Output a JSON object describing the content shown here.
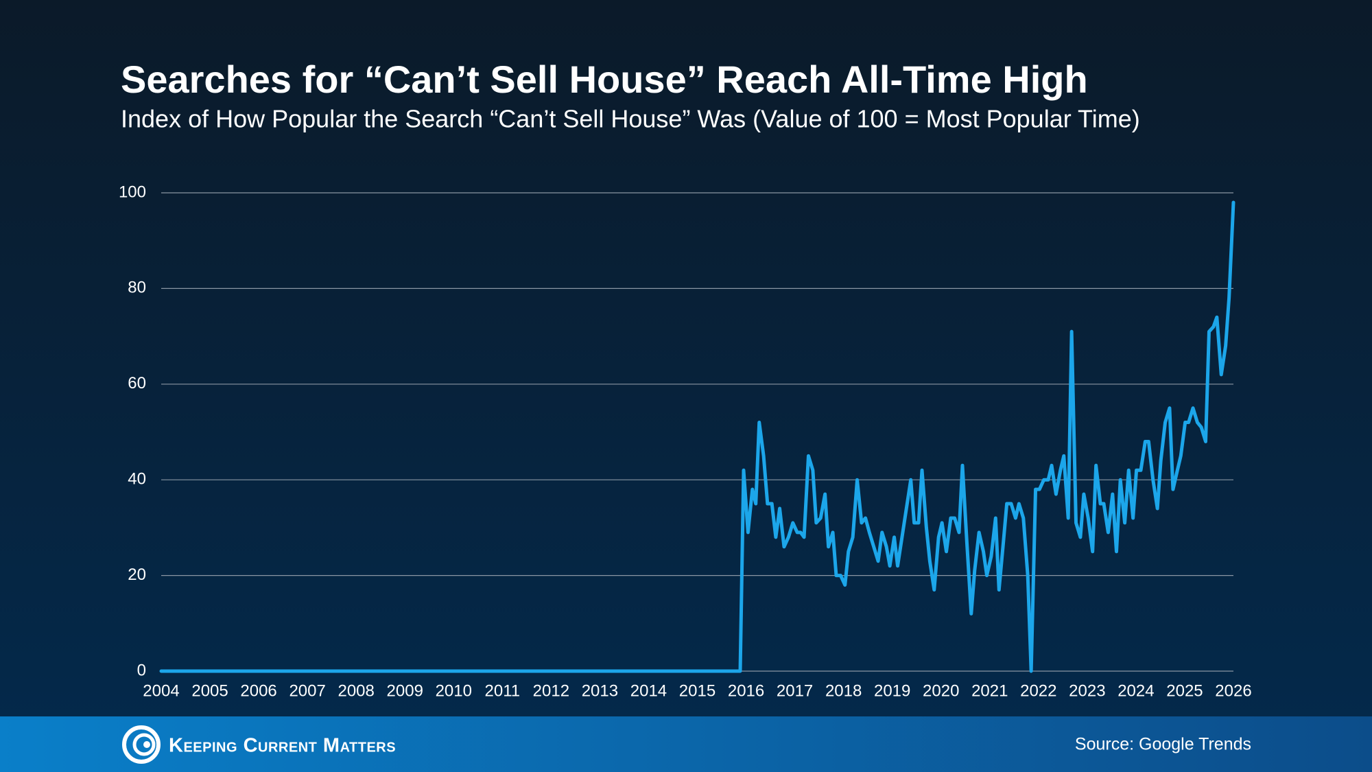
{
  "chart_data": {
    "type": "line",
    "title": "Searches for “Can’t Sell House” Reach All-Time High",
    "subtitle": "Index of How Popular the Search “Can’t Sell House” Was (Value of 100 = Most Popular Time)",
    "x": [
      2004,
      2015.88,
      2015.95,
      2016.04,
      2016.13,
      2016.2,
      2016.27,
      2016.36,
      2016.44,
      2016.53,
      2016.61,
      2016.69,
      2016.78,
      2016.87,
      2016.96,
      2017.05,
      2017.12,
      2017.19,
      2017.28,
      2017.37,
      2017.44,
      2017.53,
      2017.62,
      2017.69,
      2017.78,
      2017.85,
      2017.94,
      2018.03,
      2018.1,
      2018.19,
      2018.28,
      2018.37,
      2018.45,
      2018.53,
      2018.62,
      2018.71,
      2018.79,
      2018.88,
      2018.95,
      2019.04,
      2019.11,
      2019.2,
      2019.29,
      2019.38,
      2019.45,
      2019.54,
      2019.61,
      2019.7,
      2019.77,
      2019.86,
      2019.95,
      2020.02,
      2020.11,
      2020.2,
      2020.28,
      2020.37,
      2020.44,
      2020.53,
      2020.62,
      2020.69,
      2020.78,
      2020.87,
      2020.94,
      2021.03,
      2021.12,
      2021.19,
      2021.28,
      2021.35,
      2021.44,
      2021.53,
      2021.6,
      2021.69,
      2021.78,
      2021.85,
      2021.94,
      2022.02,
      2022.11,
      2022.2,
      2022.27,
      2022.36,
      2022.45,
      2022.52,
      2022.61,
      2022.68,
      2022.77,
      2022.86,
      2022.93,
      2023.02,
      2023.11,
      2023.18,
      2023.27,
      2023.34,
      2023.43,
      2023.52,
      2023.6,
      2023.68,
      2023.77,
      2023.85,
      2023.94,
      2024.01,
      2024.1,
      2024.19,
      2024.26,
      2024.35,
      2024.44,
      2024.51,
      2024.6,
      2024.69,
      2024.76,
      2024.85,
      2024.92,
      2025.01,
      2025.08,
      2025.17,
      2025.26,
      2025.34,
      2025.43,
      2025.5,
      2025.59,
      2025.66,
      2025.75,
      2025.84,
      2025.91,
      2026.0
    ],
    "values": [
      0,
      0,
      42,
      29,
      38,
      35,
      52,
      45,
      35,
      35,
      28,
      34,
      26,
      28,
      31,
      29,
      29,
      28,
      45,
      42,
      31,
      32,
      37,
      26,
      29,
      20,
      20,
      18,
      25,
      28,
      40,
      31,
      32,
      29,
      26,
      23,
      29,
      26,
      22,
      28,
      22,
      28,
      34,
      40,
      31,
      31,
      42,
      30,
      23,
      17,
      28,
      31,
      25,
      32,
      32,
      29,
      43,
      27,
      12,
      21,
      29,
      25,
      20,
      24,
      32,
      17,
      27,
      35,
      35,
      32,
      35,
      32,
      20,
      0,
      38,
      38,
      40,
      40,
      43,
      37,
      42,
      45,
      32,
      71,
      31,
      28,
      37,
      32,
      25,
      43,
      35,
      35,
      29,
      37,
      25,
      40,
      31,
      42,
      32,
      42,
      42,
      48,
      48,
      40,
      34,
      44,
      52,
      55,
      38,
      42,
      45,
      52,
      52,
      55,
      52,
      51,
      48,
      71,
      72,
      74,
      62,
      68,
      78,
      98
    ],
    "color": "#1ca6ea",
    "xlim": [
      2004,
      2026
    ],
    "xticks": [
      2004,
      2005,
      2006,
      2007,
      2008,
      2009,
      2010,
      2011,
      2012,
      2013,
      2014,
      2015,
      2016,
      2017,
      2018,
      2019,
      2020,
      2021,
      2022,
      2023,
      2024,
      2025,
      2026
    ],
    "ylim": [
      0,
      100
    ],
    "yticks": [
      0,
      20,
      40,
      60,
      80,
      100
    ],
    "grid": true,
    "source": "Source: Google Trends",
    "brand": "Keeping Current Matters"
  }
}
